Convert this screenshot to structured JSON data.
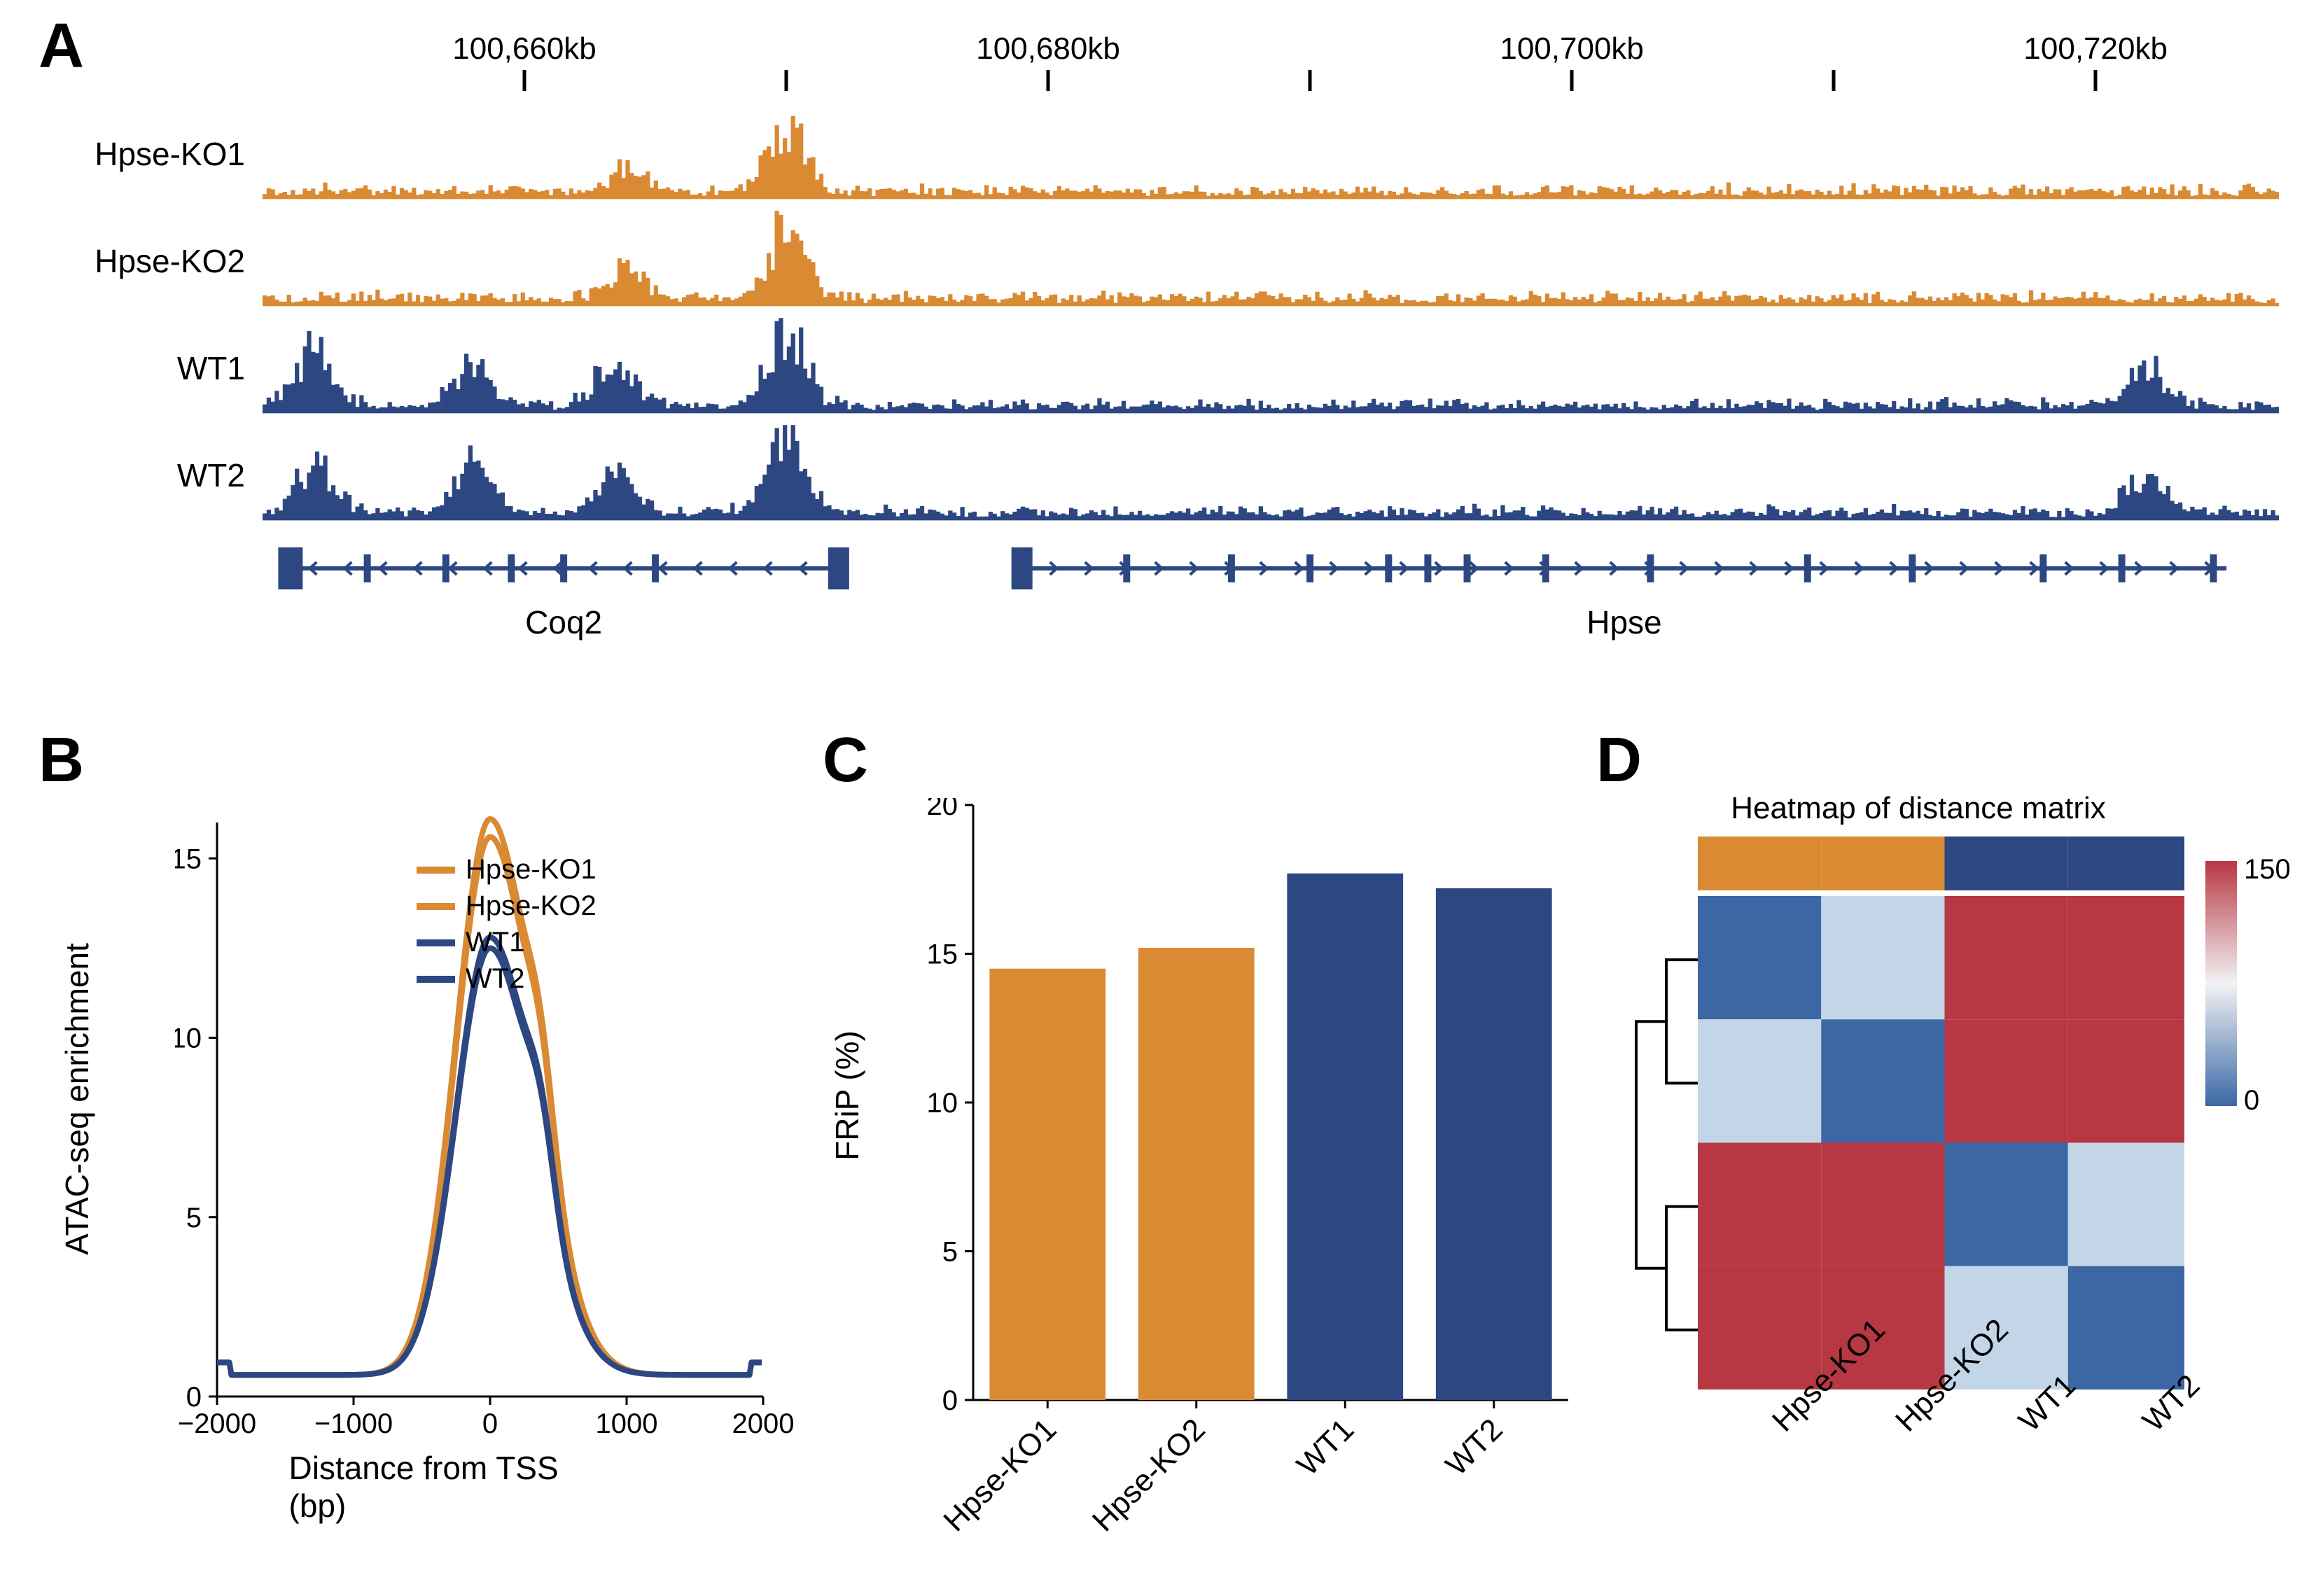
{
  "colors": {
    "orange": "#d98a33",
    "navy": "#2c4782",
    "orange_light": "#e6943f",
    "navy_light": "#3a5192",
    "heat_red": "#b73843",
    "heat_lightred": "#e89b9e",
    "heat_lightblue": "#c3d6e8",
    "heat_blue": "#3b68a5",
    "black": "#000000",
    "white": "#ffffff"
  },
  "panelA": {
    "label": "A",
    "ruler": {
      "ticks_kb": [
        100660,
        100680,
        100700,
        100720
      ],
      "minor_every": 2,
      "domain": [
        100650,
        100727
      ]
    },
    "tracks": [
      {
        "name": "Hpse-KO1",
        "color": "orange"
      },
      {
        "name": "Hpse-KO2",
        "color": "orange"
      },
      {
        "name": "WT1",
        "color": "navy"
      },
      {
        "name": "WT2",
        "color": "navy"
      }
    ],
    "ymax": 100,
    "peak_specs": [
      [
        [
          100664,
          25
        ],
        [
          100670,
          70
        ]
      ],
      [
        [
          100664,
          30
        ],
        [
          100670,
          75
        ]
      ],
      [
        [
          100652,
          55
        ],
        [
          100658,
          45
        ],
        [
          100663.5,
          48
        ],
        [
          100670,
          80
        ],
        [
          100722,
          40
        ]
      ],
      [
        [
          100652,
          52
        ],
        [
          100658,
          50
        ],
        [
          100663.5,
          40
        ],
        [
          100670,
          82
        ],
        [
          100722,
          42
        ]
      ]
    ],
    "genes": [
      {
        "name": "Coq2",
        "start": 100651,
        "end": 100672,
        "dir": "left",
        "exons": [
          100651,
          100654,
          100657,
          100659.5,
          100661.5,
          100665,
          100672
        ],
        "thick_end": true
      },
      {
        "name": "Hpse",
        "start": 100679,
        "end": 100725,
        "dir": "right",
        "exons": [
          100679,
          100683,
          100687,
          100690,
          100693,
          100694.5,
          100696,
          100699,
          100703,
          100709,
          100713,
          100718,
          100721,
          100724.5
        ],
        "thick_start": true
      }
    ]
  },
  "panelB": {
    "label": "B",
    "ylabel": "ATAC-seq enrichment",
    "xlabel": "Distance from TSS (bp)",
    "xlim": [
      -2000,
      2000
    ],
    "ylim": [
      0,
      16
    ],
    "xticks": [
      -2000,
      -1000,
      0,
      1000,
      2000
    ],
    "yticks": [
      0,
      5,
      10,
      15
    ],
    "legend": [
      "Hpse-KO1",
      "Hpse-KO2",
      "WT1",
      "WT2"
    ],
    "legend_colors": [
      "orange",
      "orange",
      "navy",
      "navy"
    ],
    "peak_heights": [
      15.5,
      15.0,
      12.2,
      11.9
    ],
    "shoulder_x": 380,
    "shoulder_heights": [
      5.5,
      5.2,
      4.8,
      4.6
    ]
  },
  "panelC": {
    "label": "C",
    "ylabel": "FRiP (%)",
    "ylim": [
      0,
      20
    ],
    "yticks": [
      0,
      5,
      10,
      15,
      20
    ],
    "bars": [
      {
        "name": "Hpse-KO1",
        "value": 14.5,
        "color": "orange"
      },
      {
        "name": "Hpse-KO2",
        "value": 15.2,
        "color": "orange"
      },
      {
        "name": "WT1",
        "value": 17.7,
        "color": "navy"
      },
      {
        "name": "WT2",
        "value": 17.2,
        "color": "navy"
      }
    ]
  },
  "panelD": {
    "label": "D",
    "title": "Heatmap of distance matrix",
    "colnames": [
      "Hpse-KO1",
      "Hpse-KO2",
      "WT1",
      "WT2"
    ],
    "col_ann_colors": [
      "orange",
      "orange",
      "navy",
      "navy"
    ],
    "cbar_range": [
      0,
      150
    ],
    "matrix_colorkeys": [
      [
        "heat_blue",
        "heat_lightblue",
        "heat_red",
        "heat_red"
      ],
      [
        "heat_lightblue",
        "heat_blue",
        "heat_red",
        "heat_red"
      ],
      [
        "heat_red",
        "heat_red",
        "heat_blue",
        "heat_lightblue"
      ],
      [
        "heat_red",
        "heat_red",
        "heat_lightblue",
        "heat_blue"
      ]
    ]
  }
}
